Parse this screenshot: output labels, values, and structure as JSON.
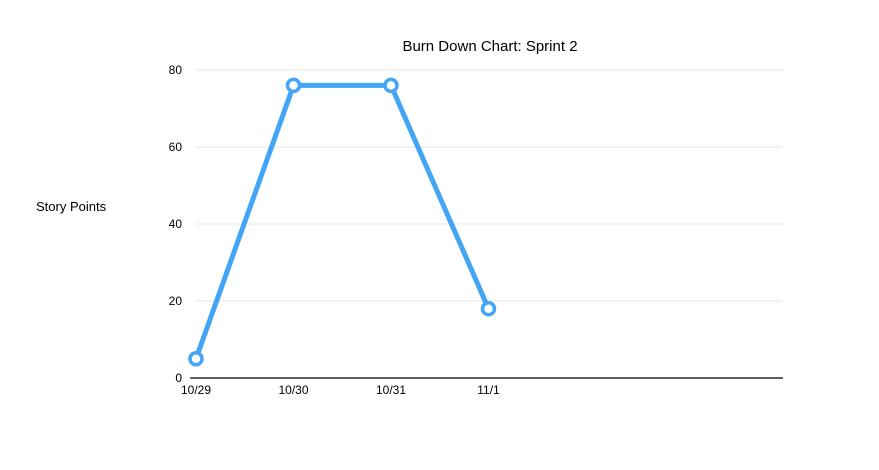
{
  "chart_data": {
    "type": "line",
    "title": "Burn Down Chart: Sprint 2",
    "xlabel": "",
    "ylabel": "Story Points",
    "categories": [
      "10/29",
      "10/30",
      "10/31",
      "11/1"
    ],
    "series": [
      {
        "values": [
          5,
          76,
          76,
          18
        ]
      }
    ],
    "ylim": [
      0,
      80
    ],
    "yticks": [
      0,
      20,
      40,
      60,
      80
    ],
    "grid": true,
    "legend": "none",
    "colors": {
      "line": "#42A5F5",
      "grid": "#e6e6e6",
      "axis": "#000000"
    }
  }
}
